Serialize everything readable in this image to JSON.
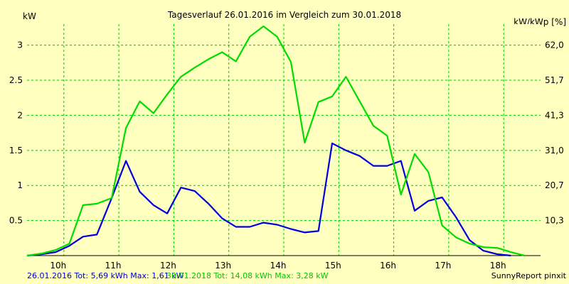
{
  "chart_data": {
    "type": "line",
    "title": "Tagesverlauf 26.01.2016 im Vergleich zum 30.01.2018",
    "ylabel_left": "kW",
    "ylabel_right": "kW/kWp [%]",
    "x_ticks": [
      "10h",
      "11h",
      "12h",
      "13h",
      "14h",
      "15h",
      "16h",
      "17h",
      "18h"
    ],
    "xlim": [
      9.33,
      18.67
    ],
    "ylim": [
      0,
      3.3
    ],
    "y_ticks_left": [
      "0.5",
      "1",
      "1.5",
      "2",
      "2.5",
      "3"
    ],
    "y_ticks_right": [
      "10,3",
      "20,7",
      "31,0",
      "41,3",
      "51,7",
      "62,0"
    ],
    "grid": true,
    "series": [
      {
        "name": "26.01.2016",
        "color": "#0000dc",
        "points": [
          [
            9.33,
            0.0
          ],
          [
            9.6,
            0.02
          ],
          [
            9.85,
            0.05
          ],
          [
            10.1,
            0.14
          ],
          [
            10.35,
            0.27
          ],
          [
            10.6,
            0.3
          ],
          [
            10.87,
            0.82
          ],
          [
            11.13,
            1.35
          ],
          [
            11.38,
            0.91
          ],
          [
            11.63,
            0.72
          ],
          [
            11.88,
            0.6
          ],
          [
            12.13,
            0.97
          ],
          [
            12.38,
            0.92
          ],
          [
            12.63,
            0.74
          ],
          [
            12.88,
            0.53
          ],
          [
            13.13,
            0.41
          ],
          [
            13.38,
            0.41
          ],
          [
            13.63,
            0.47
          ],
          [
            13.88,
            0.44
          ],
          [
            14.13,
            0.38
          ],
          [
            14.38,
            0.33
          ],
          [
            14.63,
            0.35
          ],
          [
            14.88,
            1.6
          ],
          [
            15.13,
            1.5
          ],
          [
            15.38,
            1.42
          ],
          [
            15.63,
            1.28
          ],
          [
            15.88,
            1.28
          ],
          [
            16.13,
            1.35
          ],
          [
            16.38,
            0.64
          ],
          [
            16.63,
            0.78
          ],
          [
            16.88,
            0.83
          ],
          [
            17.13,
            0.55
          ],
          [
            17.38,
            0.22
          ],
          [
            17.63,
            0.07
          ],
          [
            17.88,
            0.02
          ],
          [
            18.13,
            0.0
          ]
        ]
      },
      {
        "name": "30.01.2018",
        "color": "#00dc00",
        "points": [
          [
            9.33,
            0.0
          ],
          [
            9.6,
            0.03
          ],
          [
            9.85,
            0.08
          ],
          [
            10.1,
            0.17
          ],
          [
            10.35,
            0.72
          ],
          [
            10.6,
            0.74
          ],
          [
            10.87,
            0.82
          ],
          [
            11.13,
            1.82
          ],
          [
            11.38,
            2.2
          ],
          [
            11.63,
            2.03
          ],
          [
            11.88,
            2.3
          ],
          [
            12.13,
            2.55
          ],
          [
            12.38,
            2.68
          ],
          [
            12.63,
            2.8
          ],
          [
            12.88,
            2.9
          ],
          [
            13.13,
            2.77
          ],
          [
            13.38,
            3.12
          ],
          [
            13.63,
            3.27
          ],
          [
            13.88,
            3.12
          ],
          [
            14.13,
            2.76
          ],
          [
            14.38,
            1.61
          ],
          [
            14.63,
            2.19
          ],
          [
            14.88,
            2.27
          ],
          [
            15.13,
            2.55
          ],
          [
            15.38,
            2.2
          ],
          [
            15.63,
            1.85
          ],
          [
            15.88,
            1.71
          ],
          [
            16.13,
            0.87
          ],
          [
            16.38,
            1.45
          ],
          [
            16.63,
            1.19
          ],
          [
            16.88,
            0.43
          ],
          [
            17.13,
            0.26
          ],
          [
            17.38,
            0.17
          ],
          [
            17.63,
            0.12
          ],
          [
            17.88,
            0.11
          ],
          [
            18.13,
            0.05
          ],
          [
            18.38,
            0.0
          ]
        ]
      }
    ]
  },
  "footer": {
    "series1_summary": "26.01.2016 Tot: 5,69 kWh Max: 1,61 kW",
    "series2_summary": "30.01.2018 Tot: 14,08 kWh Max: 3,28 kW",
    "credit": "SunnyReport pinxit"
  }
}
